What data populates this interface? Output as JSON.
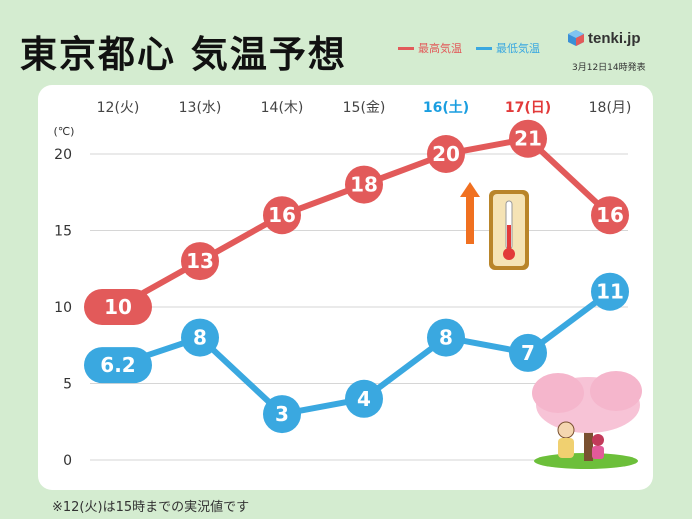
{
  "header": {
    "title": "東京都心 気温予想",
    "legend_high": "最高気温",
    "legend_low": "最低気温",
    "logo_text": "tenki.jp",
    "issued": "3月12日14時発表"
  },
  "footnote": "※12(火)は15時までの実況値です",
  "colors": {
    "high": "#e25a5a",
    "low": "#3aa8e0",
    "sat": "#1a9ee0",
    "sun": "#e23a3a",
    "weekday": "#444444",
    "background": "#d4ecd0"
  },
  "chart_data": {
    "type": "line",
    "categories": [
      "12(火)",
      "13(水)",
      "14(木)",
      "15(金)",
      "16(土)",
      "17(日)",
      "18(月)"
    ],
    "category_colors": [
      "weekday",
      "weekday",
      "weekday",
      "weekday",
      "sat",
      "sun",
      "weekday"
    ],
    "series": [
      {
        "name": "最高気温",
        "values": [
          10,
          13,
          16,
          18,
          20,
          21,
          16
        ],
        "labels": [
          "10",
          "13",
          "16",
          "18",
          "20",
          "21",
          "16"
        ]
      },
      {
        "name": "最低気温",
        "values": [
          6.2,
          8,
          3,
          4,
          8,
          7,
          11
        ],
        "labels": [
          "6.2",
          "8",
          "3",
          "4",
          "8",
          "7",
          "11"
        ]
      }
    ],
    "yunit": "(℃)",
    "yticks": [
      0,
      5,
      10,
      15,
      20
    ],
    "ylim": [
      0,
      20
    ],
    "grid": true,
    "legend_position": "top-right"
  },
  "decorations": {
    "thermometer": "thermometer-rising-icon",
    "illustration": "cherry-blossom-illustration"
  }
}
